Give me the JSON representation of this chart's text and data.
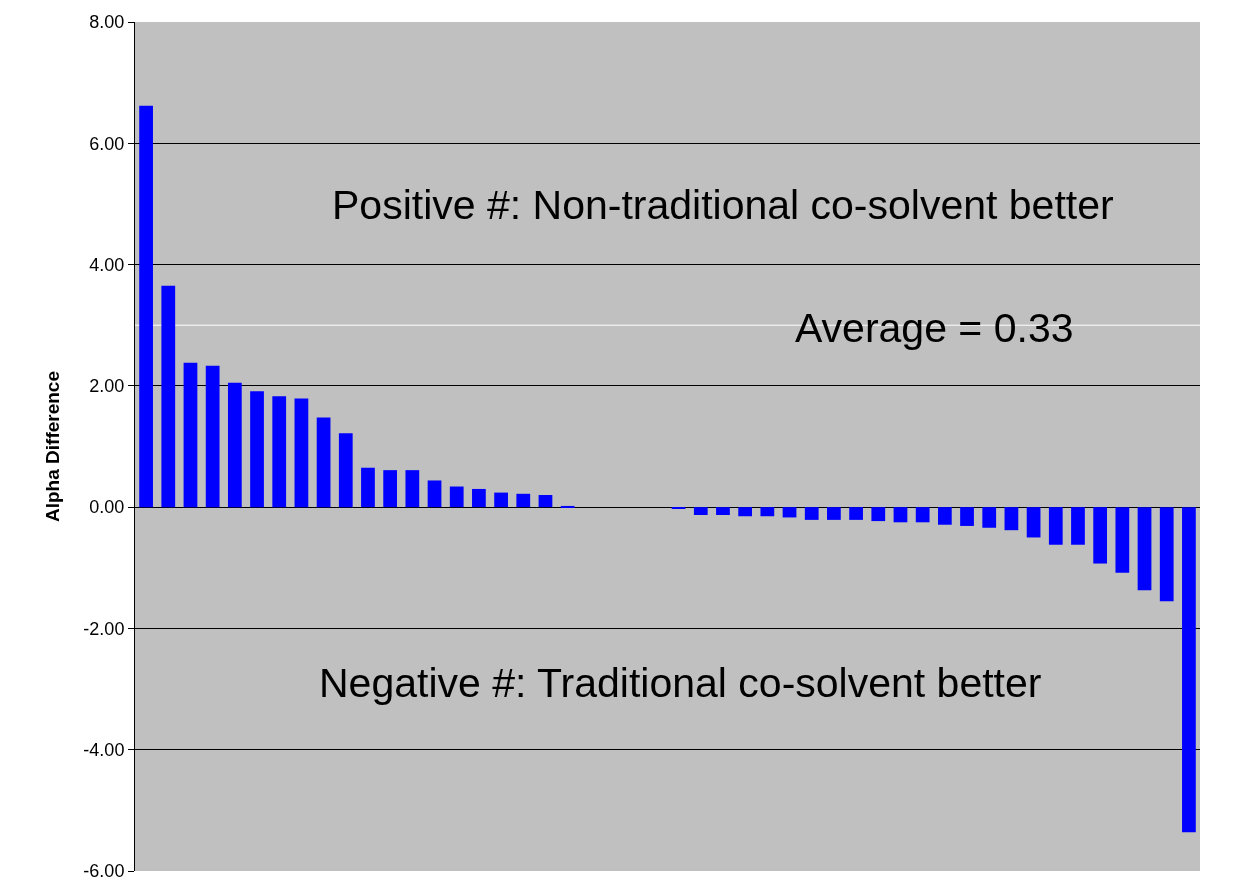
{
  "chart_data": {
    "type": "bar",
    "ylabel": "Alpha Difference",
    "categories": [
      null,
      null,
      null,
      null,
      null,
      null,
      null,
      null,
      null,
      null,
      null,
      null,
      null,
      null,
      null,
      null,
      null,
      null,
      null,
      null,
      null,
      null,
      null,
      null,
      null,
      null,
      null,
      null,
      null,
      null,
      null,
      null,
      null,
      null,
      null,
      null,
      null,
      null,
      null,
      null,
      null,
      null,
      null,
      null,
      null,
      null,
      null,
      null
    ],
    "values": [
      6.62,
      3.65,
      2.38,
      2.33,
      2.05,
      1.91,
      1.83,
      1.79,
      1.48,
      1.22,
      0.65,
      0.61,
      0.61,
      0.44,
      0.34,
      0.3,
      0.24,
      0.22,
      0.2,
      0.02,
      0,
      0,
      0,
      0,
      -0.03,
      -0.13,
      -0.13,
      -0.15,
      -0.15,
      -0.17,
      -0.21,
      -0.21,
      -0.21,
      -0.23,
      -0.25,
      -0.25,
      -0.29,
      -0.31,
      -0.34,
      -0.38,
      -0.5,
      -0.62,
      -0.62,
      -0.93,
      -1.08,
      -1.37,
      -1.55,
      -5.36
    ],
    "color": "#0000ff",
    "ylim": [
      -6,
      8
    ],
    "yticks": [
      {
        "value": -6,
        "label": "-6.00"
      },
      {
        "value": -4,
        "label": "-4.00"
      },
      {
        "value": -2,
        "label": "-2.00"
      },
      {
        "value": 0,
        "label": "0.00"
      },
      {
        "value": 2,
        "label": "2.00"
      },
      {
        "value": 4,
        "label": "4.00"
      },
      {
        "value": 6,
        "label": "6.00"
      },
      {
        "value": 8,
        "label": "8.00"
      }
    ],
    "grid": "y",
    "legend": false,
    "tick_labels": "y",
    "ref_lines": [
      {
        "axis": "y",
        "value": 3,
        "color": "#ffffff"
      }
    ],
    "annotations": [
      "Positive #: Non-traditional co-solvent better",
      "Average = 0.33",
      "Negative #: Traditional co-solvent better"
    ]
  }
}
